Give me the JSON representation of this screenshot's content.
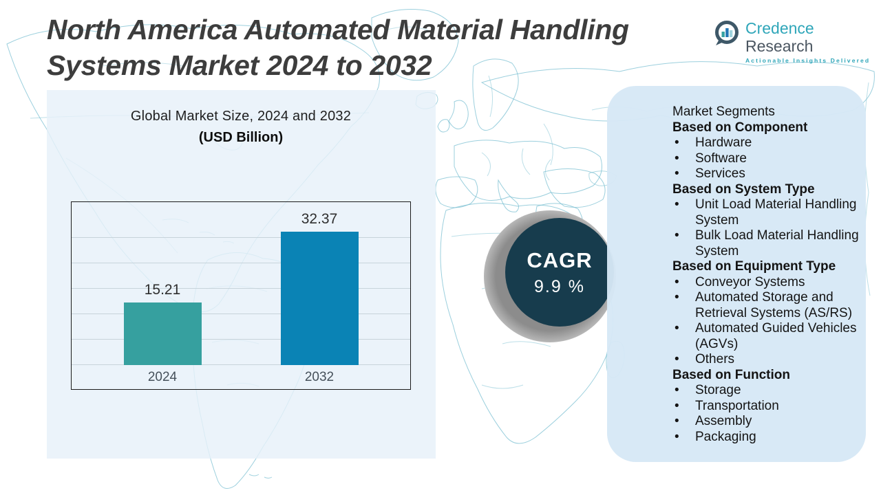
{
  "header": {
    "title_line1": "North America Automated Material Handling",
    "title_line2": "Systems Market 2024 to 2032"
  },
  "logo": {
    "brand_first": "Credence",
    "brand_second": "Research",
    "tagline": "Actionable Insights Delivered",
    "brand_color_primary": "#2fa6b9",
    "brand_color_secondary": "#4b5661"
  },
  "chart_data": {
    "type": "bar",
    "title": "Global Market Size, 2024 and 2032",
    "subtitle": "(USD Billion)",
    "categories": [
      "2024",
      "2032"
    ],
    "values": [
      15.21,
      32.37
    ],
    "bar_colors": [
      "#36a09f",
      "#0a83b5"
    ],
    "ylim": [
      0,
      35
    ],
    "grid": true,
    "legend": "none",
    "value_labels": [
      "15.21",
      "32.37"
    ]
  },
  "cagr": {
    "label": "CAGR",
    "value": "9.9 %",
    "circle_color": "#173c4d"
  },
  "segments": {
    "title": "Market Segments",
    "groups": [
      {
        "heading": "Based on Component",
        "items": [
          "Hardware",
          "Software",
          "Services"
        ]
      },
      {
        "heading": "Based on System Type",
        "items": [
          "Unit Load Material Handling System",
          "Bulk Load Material Handling System"
        ]
      },
      {
        "heading": "Based on Equipment Type",
        "items": [
          "Conveyor Systems",
          "Automated Storage and Retrieval Systems (AS/RS)",
          "Automated Guided Vehicles (AGVs)",
          "Others"
        ]
      },
      {
        "heading": "Based on Function",
        "items": [
          "Storage",
          "Transportation",
          "Assembly",
          "Packaging"
        ]
      }
    ]
  }
}
